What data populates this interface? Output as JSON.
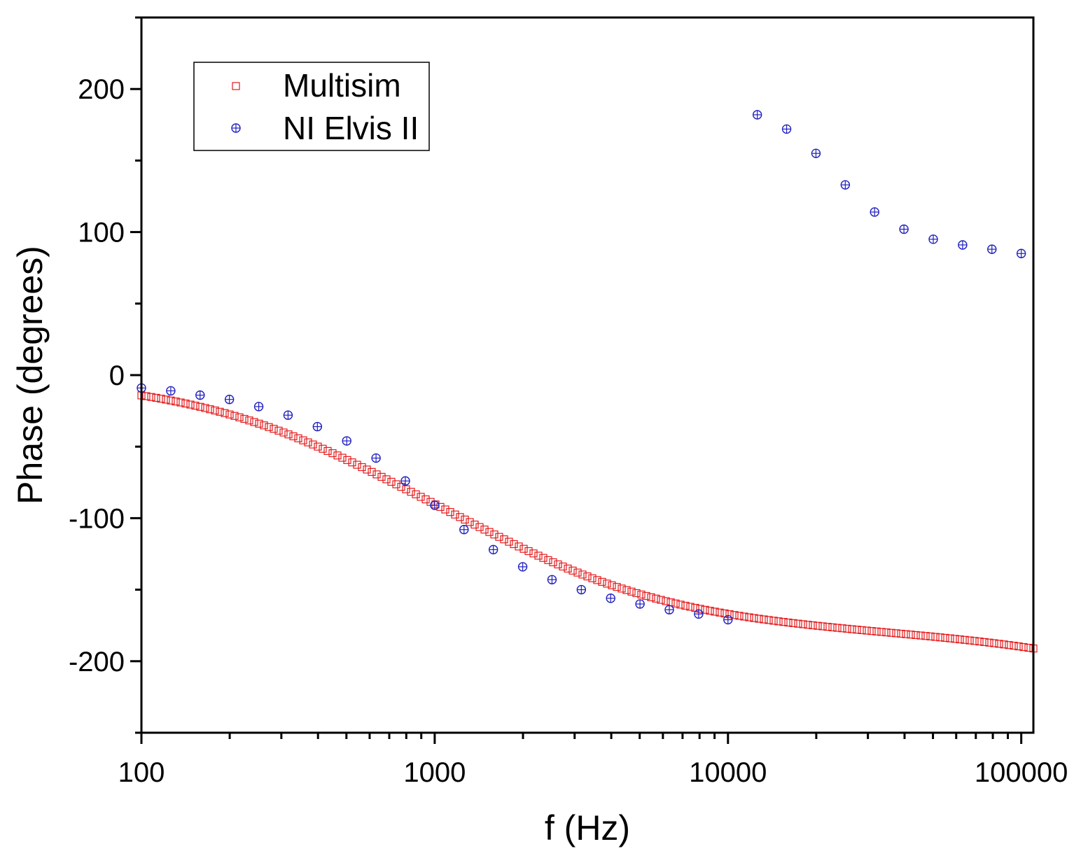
{
  "chart_data": {
    "type": "scatter",
    "title": "",
    "xlabel": "f (Hz)",
    "ylabel": "Phase (degrees)",
    "xscale": "log",
    "xlim": [
      100,
      110000
    ],
    "ylim": [
      -250,
      250
    ],
    "x_ticks": [
      100,
      1000,
      10000,
      100000
    ],
    "x_tick_labels": [
      "100",
      "1000",
      "10000",
      "100000"
    ],
    "y_ticks": [
      -200,
      -100,
      0,
      100,
      200
    ],
    "y_tick_labels": [
      "-200",
      "-100",
      "0",
      "100",
      "200"
    ],
    "grid": false,
    "legend_position": "top-left",
    "series": [
      {
        "name": "Multisim",
        "marker": "open-square",
        "color": "#e31a1c",
        "model": {
          "f1": 500,
          "f2": 2000,
          "fh": 500000,
          "y0": 0
        },
        "x_range": [
          100,
          110000
        ],
        "points_per_decade": 60
      },
      {
        "name": "NI Elvis II",
        "marker": "circle-plus",
        "color": "#1f1fbf",
        "x": [
          100,
          125.9,
          158.5,
          199.5,
          251.2,
          316.2,
          398.1,
          501.2,
          631,
          794.3,
          1000,
          1258.9,
          1584.9,
          1995.3,
          2511.9,
          3162.3,
          3981.1,
          5011.9,
          6309.6,
          7943.3,
          10000,
          12589.3,
          15848.9,
          19952.6,
          25118.9,
          31622.8,
          39810.7,
          50118.7,
          63095.7,
          79432.8,
          100000
        ],
        "y": [
          -9,
          -11,
          -14,
          -17,
          -22,
          -28,
          -36,
          -46,
          -58,
          -74,
          -91,
          -108,
          -122,
          -134,
          -143,
          -150,
          -156,
          -160,
          -164,
          -167,
          -171,
          182,
          172,
          155,
          133,
          114,
          102,
          95,
          91,
          88,
          85
        ]
      }
    ]
  }
}
